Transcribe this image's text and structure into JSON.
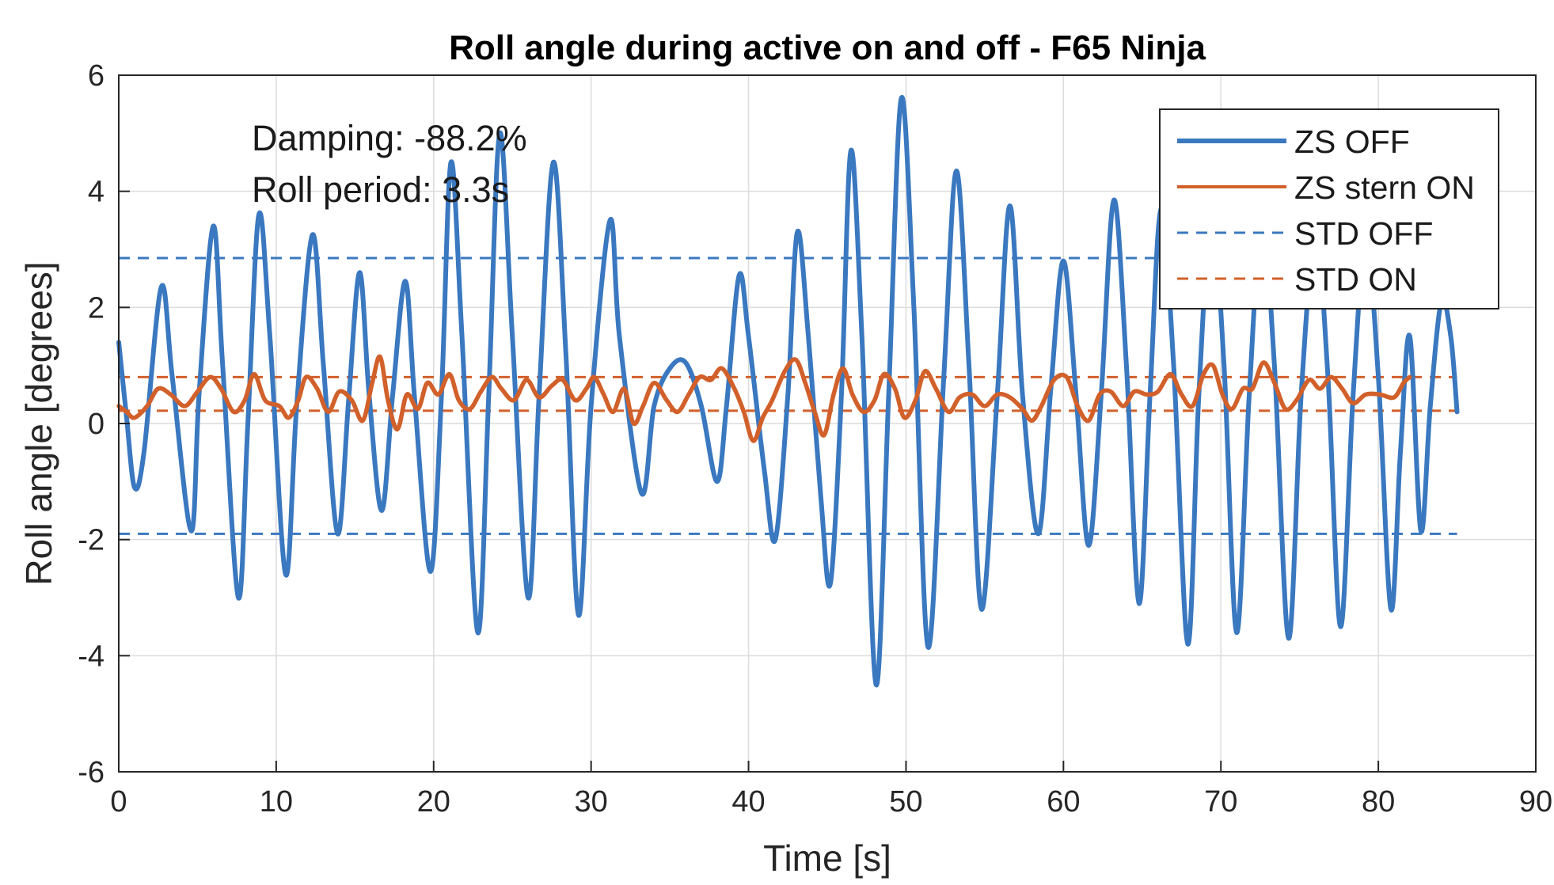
{
  "chart_data": {
    "type": "line",
    "title": "Roll angle during active on and off - F65 Ninja",
    "xlabel": "Time [s]",
    "ylabel": "Roll angle [degrees]",
    "xlim": [
      0,
      90
    ],
    "ylim": [
      -6,
      6
    ],
    "xticks": [
      0,
      10,
      20,
      30,
      40,
      50,
      60,
      70,
      80,
      90
    ],
    "yticks": [
      -6,
      -4,
      -2,
      0,
      2,
      4,
      6
    ],
    "grid": true,
    "legend_position": "top-right",
    "annotations": [
      "Damping: -88.2%",
      "Roll period: 3.3s"
    ],
    "series": [
      {
        "name": "ZS OFF",
        "style": "solid",
        "color": "#3a78c0",
        "points": [
          [
            0,
            1.4
          ],
          [
            0.5,
            0.1
          ],
          [
            1.0,
            -1.1
          ],
          [
            1.6,
            -0.5
          ],
          [
            2.7,
            2.35
          ],
          [
            3.4,
            0.8
          ],
          [
            4.6,
            -1.85
          ],
          [
            5.1,
            0.5
          ],
          [
            6.0,
            3.4
          ],
          [
            6.6,
            1.0
          ],
          [
            7.6,
            -3.0
          ],
          [
            8.2,
            0.0
          ],
          [
            8.9,
            3.6
          ],
          [
            9.6,
            1.5
          ],
          [
            10.6,
            -2.6
          ],
          [
            11.3,
            0.3
          ],
          [
            12.3,
            3.25
          ],
          [
            13.0,
            1.0
          ],
          [
            13.9,
            -1.9
          ],
          [
            14.6,
            0.4
          ],
          [
            15.3,
            2.6
          ],
          [
            15.9,
            0.5
          ],
          [
            16.7,
            -1.5
          ],
          [
            17.4,
            0.5
          ],
          [
            18.2,
            2.45
          ],
          [
            18.8,
            0.4
          ],
          [
            19.8,
            -2.55
          ],
          [
            20.5,
            0.5
          ],
          [
            21.1,
            4.5
          ],
          [
            21.8,
            1.5
          ],
          [
            22.8,
            -3.6
          ],
          [
            23.5,
            0.5
          ],
          [
            24.2,
            5.0
          ],
          [
            25.0,
            1.5
          ],
          [
            26.0,
            -3.0
          ],
          [
            26.7,
            0.5
          ],
          [
            27.6,
            4.5
          ],
          [
            28.4,
            1.2
          ],
          [
            29.2,
            -3.3
          ],
          [
            30.0,
            0.3
          ],
          [
            31.2,
            3.5
          ],
          [
            31.8,
            1.5
          ],
          [
            33.2,
            -1.2
          ],
          [
            34.0,
            0.3
          ],
          [
            35.0,
            0.95
          ],
          [
            36.0,
            1.05
          ],
          [
            37.0,
            0.3
          ],
          [
            38.0,
            -1.0
          ],
          [
            38.6,
            0.3
          ],
          [
            39.4,
            2.55
          ],
          [
            40.0,
            1.5
          ],
          [
            41.0,
            -0.8
          ],
          [
            41.7,
            -2.0
          ],
          [
            42.5,
            0.5
          ],
          [
            43.1,
            3.3
          ],
          [
            43.8,
            1.5
          ],
          [
            44.6,
            -1.3
          ],
          [
            45.2,
            -2.75
          ],
          [
            45.9,
            0.5
          ],
          [
            46.5,
            4.7
          ],
          [
            47.2,
            1.5
          ],
          [
            48.1,
            -4.5
          ],
          [
            48.9,
            0.5
          ],
          [
            49.7,
            5.6
          ],
          [
            50.5,
            2.0
          ],
          [
            51.4,
            -3.85
          ],
          [
            52.4,
            0.8
          ],
          [
            53.2,
            4.35
          ],
          [
            54.0,
            1.0
          ],
          [
            54.8,
            -3.2
          ],
          [
            55.8,
            0.5
          ],
          [
            56.6,
            3.75
          ],
          [
            57.4,
            0.5
          ],
          [
            58.4,
            -1.9
          ],
          [
            59.2,
            0.6
          ],
          [
            60.0,
            2.8
          ],
          [
            60.8,
            0.5
          ],
          [
            61.6,
            -2.1
          ],
          [
            62.4,
            0.5
          ],
          [
            63.2,
            3.85
          ],
          [
            64.0,
            1.0
          ],
          [
            64.8,
            -3.1
          ],
          [
            65.5,
            0.5
          ],
          [
            66.2,
            3.7
          ],
          [
            67.0,
            1.0
          ],
          [
            67.9,
            -3.8
          ],
          [
            68.6,
            0.5
          ],
          [
            69.4,
            3.6
          ],
          [
            70.2,
            1.0
          ],
          [
            71.0,
            -3.6
          ],
          [
            71.8,
            0.5
          ],
          [
            72.6,
            3.5
          ],
          [
            73.4,
            1.0
          ],
          [
            74.3,
            -3.7
          ],
          [
            75.1,
            0.5
          ],
          [
            76.0,
            3.3
          ],
          [
            76.8,
            0.8
          ],
          [
            77.6,
            -3.5
          ],
          [
            78.4,
            0.5
          ],
          [
            79.2,
            3.2
          ],
          [
            80.0,
            0.8
          ],
          [
            80.8,
            -3.2
          ],
          [
            81.4,
            -0.5
          ],
          [
            82.0,
            1.5
          ],
          [
            82.7,
            -1.85
          ],
          [
            83.3,
            0.3
          ],
          [
            84.0,
            2.1
          ],
          [
            84.6,
            1.5
          ],
          [
            85.0,
            0.2
          ]
        ]
      },
      {
        "name": "ZS stern ON",
        "style": "solid",
        "color": "#d2602a",
        "points": [
          [
            0,
            0.3
          ],
          [
            0.5,
            0.2
          ],
          [
            1.0,
            0.1
          ],
          [
            1.8,
            0.3
          ],
          [
            2.5,
            0.6
          ],
          [
            3.3,
            0.5
          ],
          [
            4.2,
            0.3
          ],
          [
            5.0,
            0.55
          ],
          [
            5.8,
            0.8
          ],
          [
            6.5,
            0.6
          ],
          [
            7.3,
            0.2
          ],
          [
            8.0,
            0.4
          ],
          [
            8.6,
            0.85
          ],
          [
            9.3,
            0.4
          ],
          [
            10.2,
            0.3
          ],
          [
            10.8,
            0.1
          ],
          [
            11.4,
            0.4
          ],
          [
            11.9,
            0.8
          ],
          [
            12.6,
            0.6
          ],
          [
            13.3,
            0.2
          ],
          [
            14.0,
            0.55
          ],
          [
            14.8,
            0.4
          ],
          [
            15.5,
            0.05
          ],
          [
            16.1,
            0.7
          ],
          [
            16.6,
            1.15
          ],
          [
            17.1,
            0.4
          ],
          [
            17.7,
            -0.1
          ],
          [
            18.3,
            0.5
          ],
          [
            19.0,
            0.25
          ],
          [
            19.6,
            0.7
          ],
          [
            20.3,
            0.5
          ],
          [
            21.0,
            0.85
          ],
          [
            21.6,
            0.4
          ],
          [
            22.3,
            0.25
          ],
          [
            23.0,
            0.55
          ],
          [
            23.7,
            0.8
          ],
          [
            24.3,
            0.6
          ],
          [
            25.1,
            0.4
          ],
          [
            25.9,
            0.75
          ],
          [
            26.7,
            0.45
          ],
          [
            27.5,
            0.65
          ],
          [
            28.2,
            0.75
          ],
          [
            29.0,
            0.4
          ],
          [
            29.7,
            0.6
          ],
          [
            30.2,
            0.8
          ],
          [
            30.8,
            0.5
          ],
          [
            31.4,
            0.2
          ],
          [
            32.1,
            0.6
          ],
          [
            32.7,
            0.0
          ],
          [
            33.3,
            0.3
          ],
          [
            34.0,
            0.7
          ],
          [
            34.8,
            0.4
          ],
          [
            35.5,
            0.2
          ],
          [
            36.2,
            0.5
          ],
          [
            36.9,
            0.8
          ],
          [
            37.6,
            0.75
          ],
          [
            38.3,
            0.95
          ],
          [
            39.1,
            0.6
          ],
          [
            39.7,
            0.2
          ],
          [
            40.3,
            -0.3
          ],
          [
            40.9,
            0.1
          ],
          [
            41.5,
            0.4
          ],
          [
            42.3,
            0.9
          ],
          [
            43.0,
            1.1
          ],
          [
            43.6,
            0.7
          ],
          [
            44.2,
            0.2
          ],
          [
            44.8,
            -0.2
          ],
          [
            45.4,
            0.5
          ],
          [
            46.0,
            0.95
          ],
          [
            46.6,
            0.5
          ],
          [
            47.3,
            0.2
          ],
          [
            48.0,
            0.4
          ],
          [
            48.6,
            0.85
          ],
          [
            49.3,
            0.6
          ],
          [
            49.9,
            0.1
          ],
          [
            50.6,
            0.4
          ],
          [
            51.2,
            0.9
          ],
          [
            51.9,
            0.6
          ],
          [
            52.7,
            0.2
          ],
          [
            53.4,
            0.45
          ],
          [
            54.2,
            0.5
          ],
          [
            55.0,
            0.3
          ],
          [
            55.8,
            0.5
          ],
          [
            56.6,
            0.45
          ],
          [
            57.4,
            0.25
          ],
          [
            58.0,
            0.05
          ],
          [
            58.6,
            0.3
          ],
          [
            59.4,
            0.75
          ],
          [
            60.2,
            0.8
          ],
          [
            60.9,
            0.3
          ],
          [
            61.6,
            0.05
          ],
          [
            62.3,
            0.5
          ],
          [
            63.0,
            0.55
          ],
          [
            63.8,
            0.3
          ],
          [
            64.5,
            0.55
          ],
          [
            65.3,
            0.5
          ],
          [
            66.0,
            0.55
          ],
          [
            66.8,
            0.85
          ],
          [
            67.5,
            0.5
          ],
          [
            68.2,
            0.3
          ],
          [
            68.9,
            0.85
          ],
          [
            69.5,
            1.0
          ],
          [
            70.1,
            0.5
          ],
          [
            70.7,
            0.25
          ],
          [
            71.4,
            0.6
          ],
          [
            72.0,
            0.6
          ],
          [
            72.7,
            1.05
          ],
          [
            73.4,
            0.7
          ],
          [
            74.1,
            0.25
          ],
          [
            74.8,
            0.4
          ],
          [
            75.6,
            0.75
          ],
          [
            76.3,
            0.6
          ],
          [
            77.0,
            0.8
          ],
          [
            77.7,
            0.6
          ],
          [
            78.4,
            0.35
          ],
          [
            79.2,
            0.5
          ],
          [
            80.1,
            0.5
          ],
          [
            81.0,
            0.45
          ],
          [
            81.6,
            0.7
          ],
          [
            82.0,
            0.8
          ]
        ]
      },
      {
        "name": "STD OFF",
        "style": "dashed",
        "color": "#3a78c0",
        "points": [
          [
            0,
            2.85
          ],
          [
            85,
            2.85
          ],
          [
            0,
            -1.9
          ],
          [
            85,
            -1.9
          ]
        ]
      },
      {
        "name": "STD ON",
        "style": "dashed",
        "color": "#d2602a",
        "points": [
          [
            0,
            0.8
          ],
          [
            85,
            0.8
          ],
          [
            0,
            0.22
          ],
          [
            85,
            0.22
          ]
        ]
      }
    ]
  }
}
